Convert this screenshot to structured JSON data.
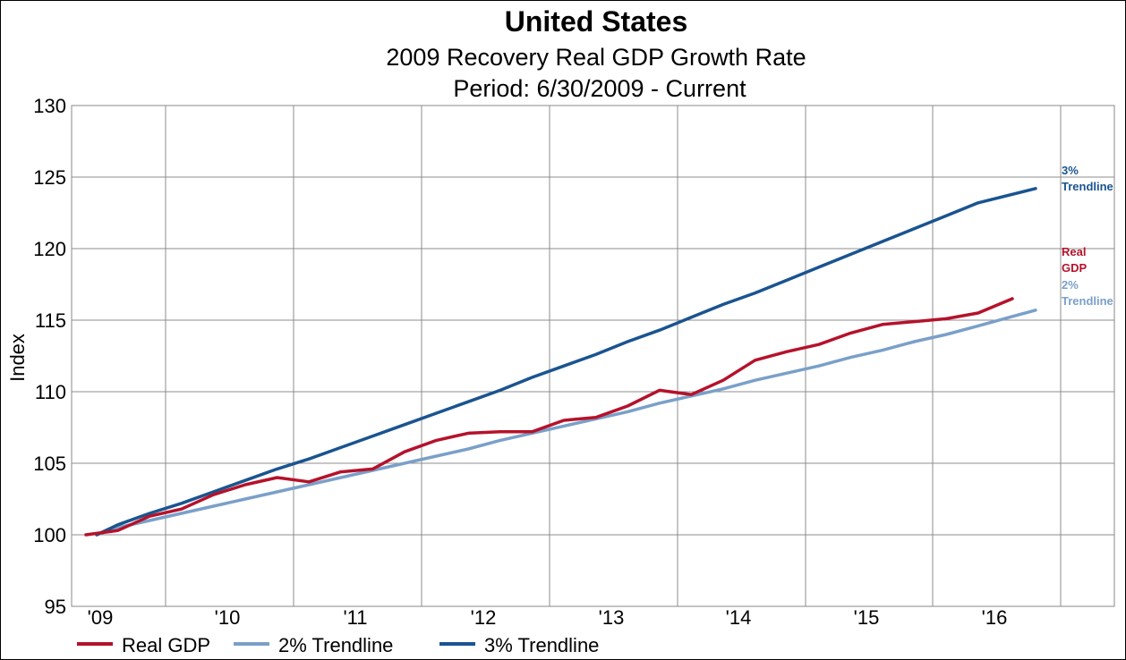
{
  "chart_data": {
    "type": "line",
    "title": "United States",
    "subtitle": "2009 Recovery Real GDP Growth Rate",
    "subtitle2": "Period: 6/30/2009 - Current",
    "ylabel": "Index",
    "ylim": [
      95,
      130
    ],
    "y_ticks": [
      "95",
      "100",
      "105",
      "110",
      "115",
      "120",
      "125",
      "130"
    ],
    "x_ticks": [
      "'09",
      "'10",
      "'11",
      "'12",
      "'13",
      "'14",
      "'15",
      "'16"
    ],
    "grid": true,
    "legend_position": "bottom-left",
    "x": [
      "2009-06-30",
      "2009-09-30",
      "2009-12-31",
      "2010-03-31",
      "2010-06-30",
      "2010-09-30",
      "2010-12-31",
      "2011-03-31",
      "2011-06-30",
      "2011-09-30",
      "2011-12-31",
      "2012-03-31",
      "2012-06-30",
      "2012-09-30",
      "2012-12-31",
      "2013-03-31",
      "2013-06-30",
      "2013-09-30",
      "2013-12-31",
      "2014-03-31",
      "2014-06-30",
      "2014-09-30",
      "2014-12-31",
      "2015-03-31",
      "2015-06-30",
      "2015-09-30",
      "2015-12-31",
      "2016-03-31",
      "2016-06-30",
      "2016-09-30"
    ],
    "series": [
      {
        "name": "Real GDP",
        "color": "#b5122b",
        "end_label": [
          "Real",
          "GDP"
        ],
        "values": [
          100.0,
          100.3,
          101.3,
          101.8,
          102.8,
          103.5,
          104.0,
          103.7,
          104.4,
          104.6,
          105.8,
          106.6,
          107.1,
          107.2,
          107.2,
          108.0,
          108.2,
          109.0,
          110.1,
          109.8,
          110.8,
          112.2,
          112.8,
          113.3,
          114.1,
          114.7,
          114.9,
          115.1,
          115.5,
          116.5
        ]
      },
      {
        "name": "2% Trendline",
        "color": "#7aa0c9",
        "end_label": [
          "2%",
          "Trendline"
        ],
        "values": [
          100.0,
          100.5,
          101.0,
          101.5,
          102.0,
          102.5,
          103.0,
          103.5,
          104.0,
          104.5,
          105.0,
          105.5,
          106.0,
          106.6,
          107.1,
          107.6,
          108.1,
          108.6,
          109.2,
          109.7,
          110.2,
          110.8,
          111.3,
          111.8,
          112.4,
          112.9,
          113.5,
          114.0,
          114.6,
          115.7
        ]
      },
      {
        "name": "3% Trendline",
        "color": "#1a5490",
        "end_label": [
          "3%",
          "Trendline"
        ],
        "values": [
          100.0,
          100.7,
          101.5,
          102.2,
          103.0,
          103.8,
          104.6,
          105.3,
          106.1,
          106.9,
          107.7,
          108.5,
          109.3,
          110.1,
          111.0,
          111.8,
          112.6,
          113.5,
          114.3,
          115.2,
          116.1,
          116.9,
          117.8,
          118.7,
          119.6,
          120.5,
          121.4,
          122.3,
          123.2,
          124.2
        ]
      }
    ]
  }
}
